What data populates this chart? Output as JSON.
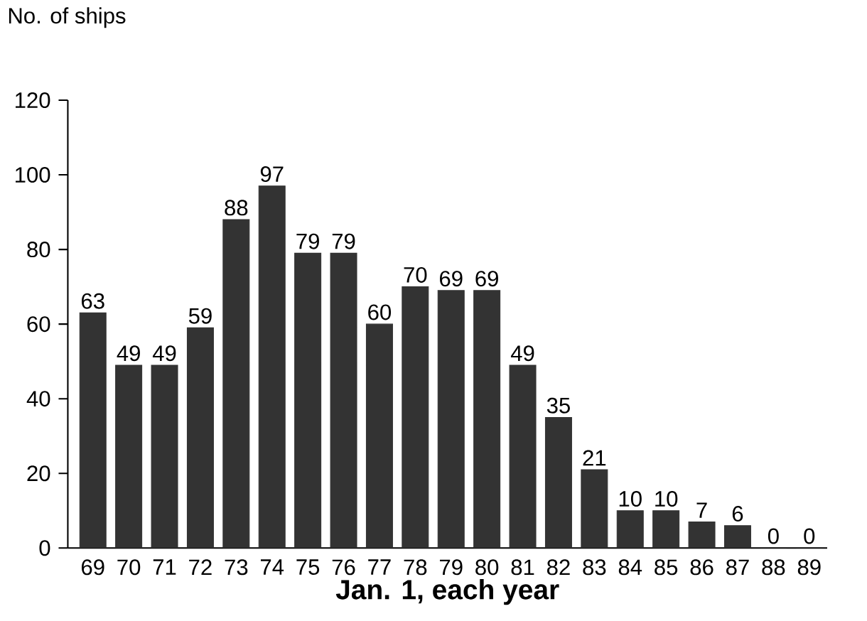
{
  "chart_data": {
    "type": "bar",
    "ylabel": "No. of ships",
    "xlabel": "Jan. 1, each year",
    "categories": [
      "69",
      "70",
      "71",
      "72",
      "73",
      "74",
      "75",
      "76",
      "77",
      "78",
      "79",
      "80",
      "81",
      "82",
      "83",
      "84",
      "85",
      "86",
      "87",
      "88",
      "89"
    ],
    "values": [
      63,
      49,
      49,
      59,
      88,
      97,
      79,
      79,
      60,
      70,
      69,
      69,
      49,
      35,
      21,
      10,
      10,
      7,
      6,
      0,
      0
    ],
    "color": "#333333",
    "ylim": [
      0,
      120
    ],
    "yticks": [
      0,
      20,
      40,
      60,
      80,
      100,
      120
    ],
    "data_labels": true
  }
}
